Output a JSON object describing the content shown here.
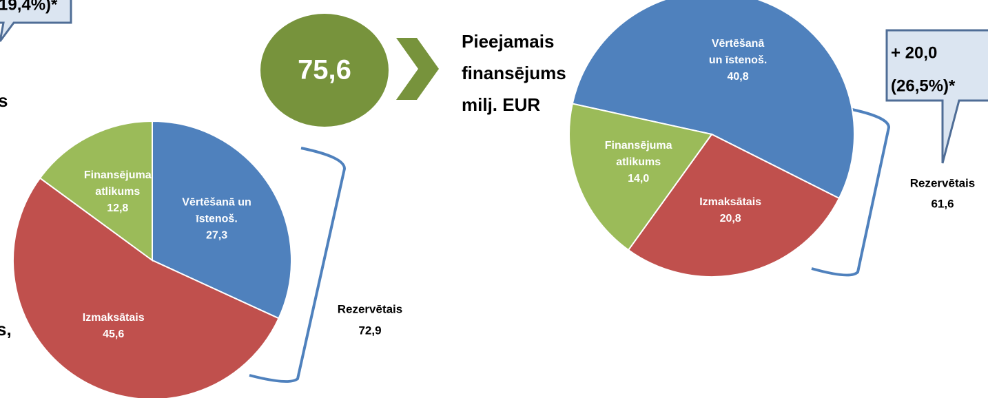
{
  "chart_data": [
    {
      "type": "pie",
      "categories": [
        [
          "Vērtēšanā un",
          "īstenoš."
        ],
        [
          "Izmaksātais"
        ],
        [
          "Finansējuma",
          "atlikums"
        ]
      ],
      "values": [
        27.3,
        45.6,
        12.8
      ],
      "value_labels": [
        "27,3",
        "45,6",
        "12,8"
      ],
      "colors": [
        "#4f81bd",
        "#c0504d",
        "#9bbb59"
      ],
      "bracket_label": [
        "Rezervētais",
        "72,9"
      ],
      "callout": [
        "19,4%)*"
      ],
      "cropped_text": [
        "s",
        "s,"
      ]
    },
    {
      "type": "pie",
      "categories": [
        [
          "Vērtēšanā",
          "un īstenoš."
        ],
        [
          "Izmaksātais"
        ],
        [
          "Finansējuma",
          "atlikums"
        ]
      ],
      "values": [
        40.8,
        20.8,
        14.0
      ],
      "value_labels": [
        "40,8",
        "20,8",
        "14,0"
      ],
      "colors": [
        "#4f81bd",
        "#c0504d",
        "#9bbb59"
      ],
      "bracket_label": [
        "Rezervētais",
        "61,6"
      ],
      "callout": [
        "+ 20,0",
        "(26,5%)*"
      ],
      "total": "75,6",
      "total_caption": [
        "Pieejamais",
        "finansējums",
        "milj. EUR"
      ]
    }
  ]
}
